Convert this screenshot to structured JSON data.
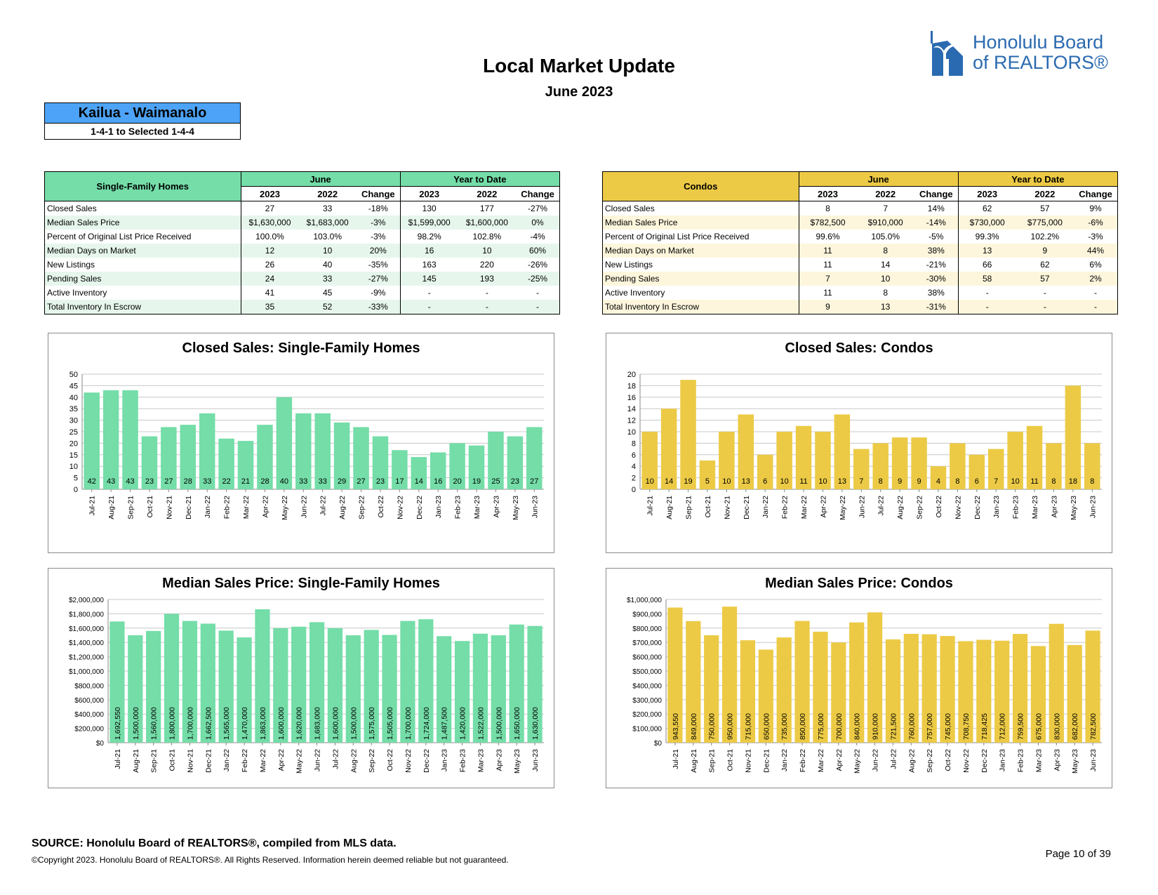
{
  "header": {
    "title": "Local Market Update",
    "subtitle": "June 2023"
  },
  "logo": {
    "line1": "Honolulu Board",
    "line2": "of REALTORS®"
  },
  "area": {
    "name": "Kailua - Waimanalo",
    "range": "1-4-1 to Selected 1-4-4"
  },
  "colors": {
    "sf": "#74dda8",
    "sf_light": "#e6f6ec",
    "condo": "#ecca45",
    "condo_light": "#fdf6dc",
    "area_blue": "#4da3f7"
  },
  "tables": [
    {
      "id": "sf",
      "title": "Single-Family Homes",
      "group1": "June",
      "group2": "Year to Date",
      "cols": [
        "2023",
        "2022",
        "Change",
        "2023",
        "2022",
        "Change"
      ],
      "rows": [
        [
          "Closed Sales",
          "27",
          "33",
          "-18%",
          "130",
          "177",
          "-27%"
        ],
        [
          "Median Sales Price",
          "$1,630,000",
          "$1,683,000",
          "-3%",
          "$1,599,000",
          "$1,600,000",
          "0%"
        ],
        [
          "Percent of Original List Price Received",
          "100.0%",
          "103.0%",
          "-3%",
          "98.2%",
          "102.8%",
          "-4%"
        ],
        [
          "Median Days on Market",
          "12",
          "10",
          "20%",
          "16",
          "10",
          "60%"
        ],
        [
          "New Listings",
          "26",
          "40",
          "-35%",
          "163",
          "220",
          "-26%"
        ],
        [
          "Pending Sales",
          "24",
          "33",
          "-27%",
          "145",
          "193",
          "-25%"
        ],
        [
          "Active Inventory",
          "41",
          "45",
          "-9%",
          "-",
          "-",
          "-"
        ],
        [
          "Total Inventory In Escrow",
          "35",
          "52",
          "-33%",
          "-",
          "-",
          "-"
        ]
      ]
    },
    {
      "id": "condo",
      "title": "Condos",
      "group1": "June",
      "group2": "Year to Date",
      "cols": [
        "2023",
        "2022",
        "Change",
        "2023",
        "2022",
        "Change"
      ],
      "rows": [
        [
          "Closed Sales",
          "8",
          "7",
          "14%",
          "62",
          "57",
          "9%"
        ],
        [
          "Median Sales Price",
          "$782,500",
          "$910,000",
          "-14%",
          "$730,000",
          "$775,000",
          "-6%"
        ],
        [
          "Percent of Original List Price Received",
          "99.6%",
          "105.0%",
          "-5%",
          "99.3%",
          "102.2%",
          "-3%"
        ],
        [
          "Median Days on Market",
          "11",
          "8",
          "38%",
          "13",
          "9",
          "44%"
        ],
        [
          "New Listings",
          "11",
          "14",
          "-21%",
          "66",
          "62",
          "6%"
        ],
        [
          "Pending Sales",
          "7",
          "10",
          "-30%",
          "58",
          "57",
          "2%"
        ],
        [
          "Active Inventory",
          "11",
          "8",
          "38%",
          "-",
          "-",
          "-"
        ],
        [
          "Total Inventory In Escrow",
          "9",
          "13",
          "-31%",
          "-",
          "-",
          "-"
        ]
      ]
    }
  ],
  "chart_data": [
    {
      "id": "cs-sf",
      "type": "bar",
      "title": "Closed Sales: Single-Family Homes",
      "color": "#74dda8",
      "ylim": [
        0,
        50
      ],
      "yticks": [
        0,
        5,
        10,
        15,
        20,
        25,
        30,
        35,
        40,
        45,
        50
      ],
      "yfmt": "plain",
      "labels": "bottom",
      "categories": [
        "Jul-21",
        "Aug-21",
        "Sep-21",
        "Oct-21",
        "Nov-21",
        "Dec-21",
        "Jan-22",
        "Feb-22",
        "Mar-22",
        "Apr-22",
        "May-22",
        "Jun-22",
        "Jul-22",
        "Aug-22",
        "Sep-22",
        "Oct-22",
        "Nov-22",
        "Dec-22",
        "Jan-23",
        "Feb-23",
        "Mar-23",
        "Apr-23",
        "May-23",
        "Jun-23"
      ],
      "values": [
        42,
        43,
        43,
        23,
        27,
        28,
        33,
        22,
        21,
        28,
        40,
        33,
        33,
        29,
        27,
        23,
        17,
        14,
        16,
        20,
        19,
        25,
        23,
        27
      ]
    },
    {
      "id": "cs-co",
      "type": "bar",
      "title": "Closed Sales: Condos",
      "color": "#ecca45",
      "ylim": [
        0,
        20
      ],
      "yticks": [
        0,
        2,
        4,
        6,
        8,
        10,
        12,
        14,
        16,
        18,
        20
      ],
      "yfmt": "plain",
      "labels": "bottom",
      "categories": [
        "Jul-21",
        "Aug-21",
        "Sep-21",
        "Oct-21",
        "Nov-21",
        "Dec-21",
        "Jan-22",
        "Feb-22",
        "Mar-22",
        "Apr-22",
        "May-22",
        "Jun-22",
        "Jul-22",
        "Aug-22",
        "Sep-22",
        "Oct-22",
        "Nov-22",
        "Dec-22",
        "Jan-23",
        "Feb-23",
        "Mar-23",
        "Apr-23",
        "May-23",
        "Jun-23"
      ],
      "values": [
        10,
        14,
        19,
        5,
        10,
        13,
        6,
        10,
        11,
        10,
        13,
        7,
        8,
        9,
        9,
        4,
        8,
        6,
        7,
        10,
        11,
        8,
        18,
        8
      ]
    },
    {
      "id": "msp-sf",
      "type": "bar",
      "title": "Median Sales Price: Single-Family Homes",
      "color": "#74dda8",
      "ylim": [
        0,
        2000000
      ],
      "yticks": [
        0,
        200000,
        400000,
        600000,
        800000,
        1000000,
        1200000,
        1400000,
        1600000,
        1800000,
        2000000
      ],
      "yfmt": "dollar",
      "labels": "vertical",
      "categories": [
        "Jul-21",
        "Aug-21",
        "Sep-21",
        "Oct-21",
        "Nov-21",
        "Dec-21",
        "Jan-22",
        "Feb-22",
        "Mar-22",
        "Apr-22",
        "May-22",
        "Jun-22",
        "Jul-22",
        "Aug-22",
        "Sep-22",
        "Oct-22",
        "Nov-22",
        "Dec-22",
        "Jan-23",
        "Feb-23",
        "Mar-23",
        "Apr-23",
        "May-23",
        "Jun-23"
      ],
      "values": [
        1692550,
        1500000,
        1560000,
        1800000,
        1700000,
        1662500,
        1565000,
        1470000,
        1863000,
        1600000,
        1620000,
        1683000,
        1600000,
        1500000,
        1575000,
        1505000,
        1700000,
        1724000,
        1487500,
        1420000,
        1522000,
        1500000,
        1650000,
        1630000
      ]
    },
    {
      "id": "msp-co",
      "type": "bar",
      "title": "Median Sales Price: Condos",
      "color": "#ecca45",
      "ylim": [
        0,
        1000000
      ],
      "yticks": [
        0,
        100000,
        200000,
        300000,
        400000,
        500000,
        600000,
        700000,
        800000,
        900000,
        1000000
      ],
      "yfmt": "dollar",
      "labels": "vertical",
      "categories": [
        "Jul-21",
        "Aug-21",
        "Sep-21",
        "Oct-21",
        "Nov-21",
        "Dec-21",
        "Jan-22",
        "Feb-22",
        "Mar-22",
        "Apr-22",
        "May-22",
        "Jun-22",
        "Jul-22",
        "Aug-22",
        "Sep-22",
        "Oct-22",
        "Nov-22",
        "Dec-22",
        "Jan-23",
        "Feb-23",
        "Mar-23",
        "Apr-23",
        "May-23",
        "Jun-23"
      ],
      "values": [
        943550,
        849000,
        750000,
        950000,
        715000,
        650000,
        735000,
        850000,
        775000,
        700000,
        840000,
        910000,
        721500,
        760000,
        757000,
        745000,
        708750,
        718425,
        712000,
        759500,
        675000,
        830000,
        682000,
        782500
      ]
    }
  ],
  "footer": {
    "source": "SOURCE: Honolulu Board of REALTORS®, compiled from MLS data.",
    "copyright": "©Copyright 2023. Honolulu Board of REALTORS®. All Rights Reserved. Information herein deemed reliable but not guaranteed.",
    "page": "Page 10 of 39"
  }
}
